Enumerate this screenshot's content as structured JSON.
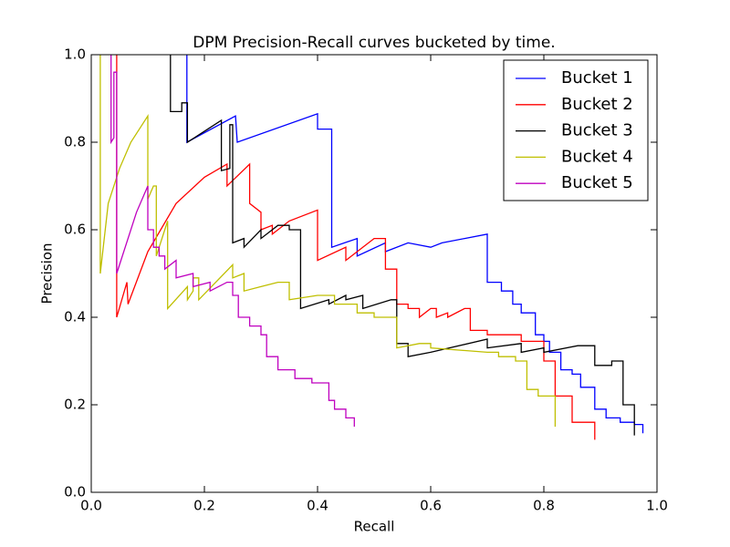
{
  "chart_data": {
    "type": "line",
    "title": "DPM Precision-Recall curves bucketed by time.",
    "x_label": "Recall",
    "y_label": "Precision",
    "xlim": [
      0,
      1
    ],
    "ylim": [
      0,
      1
    ],
    "xticks": [
      {
        "value": 0,
        "label": "0.0"
      },
      0.2,
      0.4,
      0.6,
      0.8,
      {
        "value": 1,
        "label": "1.0"
      }
    ],
    "yticks": [
      {
        "value": 0,
        "label": "0.0"
      },
      0.2,
      0.4,
      0.6,
      0.8,
      {
        "value": 1,
        "label": "1.0"
      }
    ],
    "legend": "upper right",
    "series": [
      {
        "name": "Bucket 1",
        "color": "#0000ff",
        "x": [
          0.169,
          0.169,
          0.255,
          0.258,
          0.4,
          0.4,
          0.425,
          0.425,
          0.47,
          0.47,
          0.52,
          0.52,
          0.56,
          0.6,
          0.62,
          0.66,
          0.7,
          0.7,
          0.725,
          0.725,
          0.745,
          0.745,
          0.76,
          0.76,
          0.785,
          0.785,
          0.8,
          0.8,
          0.81,
          0.81,
          0.83,
          0.83,
          0.85,
          0.85,
          0.865,
          0.865,
          0.89,
          0.89,
          0.91,
          0.91,
          0.935,
          0.935,
          0.96,
          0.96,
          0.975,
          0.975
        ],
        "values": [
          1.0,
          0.8,
          0.86,
          0.8,
          0.865,
          0.83,
          0.83,
          0.56,
          0.58,
          0.54,
          0.57,
          0.55,
          0.57,
          0.56,
          0.57,
          0.58,
          0.59,
          0.48,
          0.48,
          0.46,
          0.46,
          0.43,
          0.43,
          0.41,
          0.41,
          0.36,
          0.36,
          0.345,
          0.345,
          0.32,
          0.32,
          0.28,
          0.28,
          0.27,
          0.27,
          0.24,
          0.24,
          0.19,
          0.19,
          0.17,
          0.17,
          0.16,
          0.16,
          0.155,
          0.155,
          0.135
        ]
      },
      {
        "name": "Bucket 2",
        "color": "#ff0000",
        "x": [
          0.045,
          0.045,
          0.063,
          0.065,
          0.1,
          0.15,
          0.2,
          0.24,
          0.24,
          0.28,
          0.28,
          0.3,
          0.3,
          0.32,
          0.32,
          0.35,
          0.4,
          0.4,
          0.45,
          0.45,
          0.5,
          0.52,
          0.52,
          0.54,
          0.54,
          0.56,
          0.56,
          0.58,
          0.58,
          0.6,
          0.61,
          0.61,
          0.63,
          0.63,
          0.66,
          0.67,
          0.67,
          0.7,
          0.7,
          0.76,
          0.76,
          0.8,
          0.8,
          0.82,
          0.82,
          0.85,
          0.85,
          0.89,
          0.89
        ],
        "values": [
          1.0,
          0.4,
          0.48,
          0.43,
          0.55,
          0.66,
          0.72,
          0.75,
          0.7,
          0.75,
          0.66,
          0.64,
          0.6,
          0.61,
          0.59,
          0.62,
          0.645,
          0.53,
          0.56,
          0.53,
          0.58,
          0.58,
          0.51,
          0.51,
          0.43,
          0.43,
          0.42,
          0.42,
          0.4,
          0.42,
          0.42,
          0.4,
          0.41,
          0.4,
          0.42,
          0.42,
          0.37,
          0.37,
          0.36,
          0.36,
          0.345,
          0.345,
          0.3,
          0.3,
          0.22,
          0.22,
          0.16,
          0.16,
          0.12
        ]
      },
      {
        "name": "Bucket 3",
        "color": "#000000",
        "x": [
          0.14,
          0.14,
          0.16,
          0.16,
          0.17,
          0.17,
          0.23,
          0.23,
          0.245,
          0.245,
          0.25,
          0.25,
          0.27,
          0.27,
          0.3,
          0.3,
          0.33,
          0.35,
          0.35,
          0.37,
          0.37,
          0.42,
          0.42,
          0.45,
          0.45,
          0.48,
          0.48,
          0.53,
          0.54,
          0.54,
          0.56,
          0.56,
          0.6,
          0.7,
          0.7,
          0.76,
          0.76,
          0.8,
          0.8,
          0.86,
          0.89,
          0.89,
          0.92,
          0.92,
          0.94,
          0.94,
          0.96,
          0.96
        ],
        "values": [
          1.0,
          0.87,
          0.87,
          0.89,
          0.89,
          0.8,
          0.85,
          0.735,
          0.74,
          0.84,
          0.84,
          0.57,
          0.58,
          0.56,
          0.6,
          0.58,
          0.61,
          0.61,
          0.6,
          0.6,
          0.42,
          0.44,
          0.43,
          0.45,
          0.44,
          0.45,
          0.42,
          0.44,
          0.44,
          0.34,
          0.34,
          0.31,
          0.32,
          0.35,
          0.33,
          0.34,
          0.32,
          0.33,
          0.32,
          0.335,
          0.335,
          0.29,
          0.29,
          0.3,
          0.3,
          0.2,
          0.2,
          0.13
        ]
      },
      {
        "name": "Bucket 4",
        "color": "#bfbf00",
        "x": [
          0.016,
          0.016,
          0.03,
          0.05,
          0.07,
          0.09,
          0.1,
          0.1,
          0.11,
          0.115,
          0.115,
          0.13,
          0.135,
          0.135,
          0.17,
          0.17,
          0.18,
          0.18,
          0.19,
          0.19,
          0.25,
          0.25,
          0.27,
          0.27,
          0.3,
          0.33,
          0.35,
          0.35,
          0.4,
          0.43,
          0.43,
          0.47,
          0.47,
          0.5,
          0.5,
          0.54,
          0.54,
          0.58,
          0.6,
          0.6,
          0.7,
          0.72,
          0.72,
          0.75,
          0.75,
          0.77,
          0.77,
          0.79,
          0.79,
          0.82,
          0.82
        ],
        "values": [
          1.0,
          0.5,
          0.66,
          0.74,
          0.8,
          0.84,
          0.86,
          0.67,
          0.7,
          0.7,
          0.54,
          0.6,
          0.62,
          0.42,
          0.47,
          0.44,
          0.46,
          0.49,
          0.49,
          0.44,
          0.52,
          0.49,
          0.5,
          0.46,
          0.47,
          0.48,
          0.48,
          0.44,
          0.45,
          0.45,
          0.43,
          0.43,
          0.41,
          0.41,
          0.4,
          0.4,
          0.33,
          0.34,
          0.34,
          0.33,
          0.32,
          0.32,
          0.31,
          0.31,
          0.3,
          0.3,
          0.235,
          0.235,
          0.22,
          0.22,
          0.15
        ]
      },
      {
        "name": "Bucket 5",
        "color": "#bf00bf",
        "x": [
          0.035,
          0.035,
          0.04,
          0.04,
          0.045,
          0.045,
          0.06,
          0.08,
          0.1,
          0.1,
          0.11,
          0.11,
          0.12,
          0.12,
          0.13,
          0.13,
          0.15,
          0.15,
          0.18,
          0.18,
          0.21,
          0.21,
          0.24,
          0.25,
          0.25,
          0.26,
          0.26,
          0.28,
          0.28,
          0.3,
          0.3,
          0.31,
          0.31,
          0.33,
          0.33,
          0.36,
          0.36,
          0.39,
          0.39,
          0.42,
          0.42,
          0.43,
          0.43,
          0.45,
          0.45,
          0.465,
          0.465
        ],
        "values": [
          1.0,
          0.8,
          0.81,
          0.96,
          0.96,
          0.5,
          0.56,
          0.64,
          0.7,
          0.6,
          0.6,
          0.56,
          0.56,
          0.54,
          0.54,
          0.51,
          0.53,
          0.49,
          0.5,
          0.47,
          0.48,
          0.46,
          0.48,
          0.48,
          0.45,
          0.45,
          0.4,
          0.4,
          0.38,
          0.38,
          0.36,
          0.36,
          0.31,
          0.31,
          0.28,
          0.28,
          0.26,
          0.26,
          0.25,
          0.25,
          0.21,
          0.21,
          0.19,
          0.19,
          0.17,
          0.17,
          0.15
        ]
      }
    ]
  }
}
